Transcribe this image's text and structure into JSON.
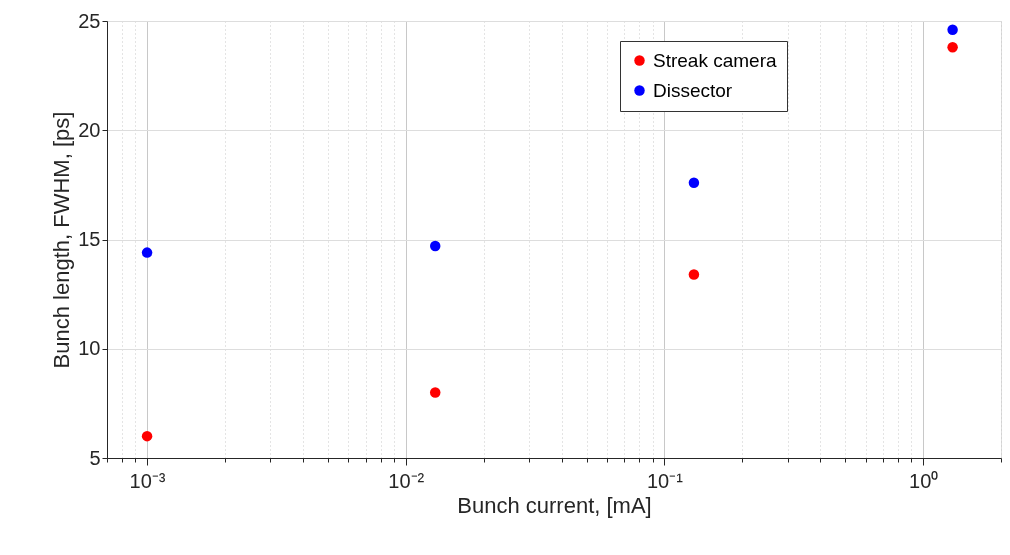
{
  "chart_data": {
    "type": "scatter",
    "xlabel": "Bunch current, [mA]",
    "ylabel": "Bunch length, FWHM, [ps]",
    "x": [
      0.001,
      0.013,
      0.13,
      1.3
    ],
    "series": [
      {
        "name": "Streak camera",
        "color": "#ff0000",
        "values": [
          6.0,
          8.0,
          13.4,
          23.8
        ]
      },
      {
        "name": "Dissector",
        "color": "#0000ff",
        "values": [
          14.4,
          14.7,
          17.6,
          24.6
        ]
      }
    ],
    "log": "x",
    "xlim": [
      0.0007,
      2
    ],
    "ylim": [
      5,
      25
    ],
    "yticks": [
      5,
      10,
      15,
      20,
      25
    ],
    "xticks": [
      {
        "value": 0.0007,
        "label": null
      },
      {
        "value": 0.0008,
        "label": null
      },
      {
        "value": 0.0009,
        "label": null
      },
      {
        "value": 0.001,
        "label": "10⁻³"
      },
      {
        "value": 0.002,
        "label": null
      },
      {
        "value": 0.003,
        "label": null
      },
      {
        "value": 0.004,
        "label": null
      },
      {
        "value": 0.005,
        "label": null
      },
      {
        "value": 0.006,
        "label": null
      },
      {
        "value": 0.007,
        "label": null
      },
      {
        "value": 0.008,
        "label": null
      },
      {
        "value": 0.009,
        "label": null
      },
      {
        "value": 0.01,
        "label": "10⁻²"
      },
      {
        "value": 0.02,
        "label": null
      },
      {
        "value": 0.03,
        "label": null
      },
      {
        "value": 0.04,
        "label": null
      },
      {
        "value": 0.05,
        "label": null
      },
      {
        "value": 0.06,
        "label": null
      },
      {
        "value": 0.07,
        "label": null
      },
      {
        "value": 0.08,
        "label": null
      },
      {
        "value": 0.09,
        "label": null
      },
      {
        "value": 0.1,
        "label": "10⁻¹"
      },
      {
        "value": 0.2,
        "label": null
      },
      {
        "value": 0.3,
        "label": null
      },
      {
        "value": 0.4,
        "label": null
      },
      {
        "value": 0.5,
        "label": null
      },
      {
        "value": 0.6,
        "label": null
      },
      {
        "value": 0.7,
        "label": null
      },
      {
        "value": 0.8,
        "label": null
      },
      {
        "value": 0.9,
        "label": null
      },
      {
        "value": 1,
        "label": "10⁰"
      },
      {
        "value": 2,
        "label": null
      }
    ],
    "grid": true,
    "legend": "top right",
    "marker": "circle"
  }
}
